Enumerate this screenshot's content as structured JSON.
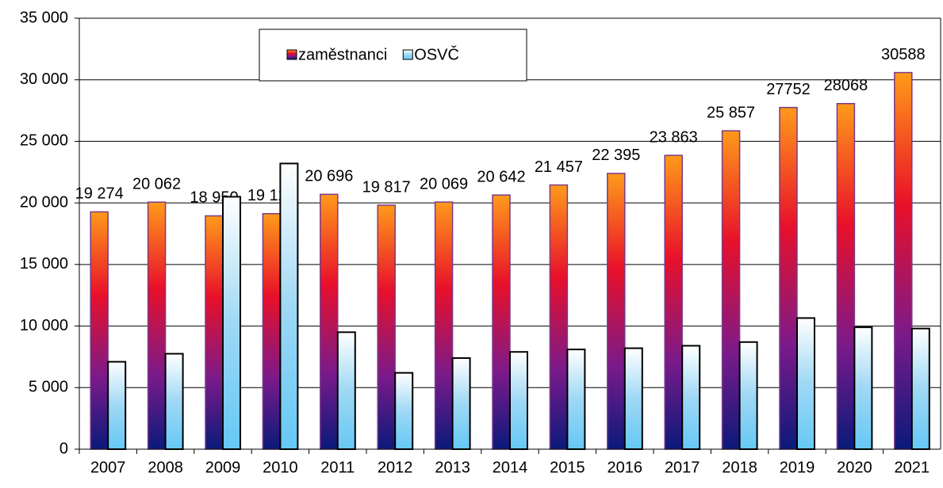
{
  "chart_data": {
    "type": "bar",
    "categories": [
      "2007",
      "2008",
      "2009",
      "2010",
      "2011",
      "2012",
      "2013",
      "2014",
      "2015",
      "2016",
      "2017",
      "2018",
      "2019",
      "2020",
      "2021"
    ],
    "series": [
      {
        "name": "zaměstnanci",
        "color": "#e8102a",
        "values": [
          19274,
          20062,
          18950,
          19128,
          20696,
          19817,
          20069,
          20642,
          21457,
          22395,
          23863,
          25857,
          27752,
          28068,
          30588
        ],
        "value_labels": [
          "19 274",
          "20 062",
          "18 950",
          "19 128",
          "20 696",
          "19 817",
          "20 069",
          "20 642",
          "21 457",
          "22 395",
          "23 863",
          "25 857",
          "27752",
          "28068",
          "30588"
        ]
      },
      {
        "name": "OSVČ",
        "color": "#9fd8f5",
        "values": [
          7100,
          7750,
          20500,
          23200,
          9500,
          6200,
          7400,
          7900,
          8100,
          8200,
          8400,
          8700,
          10650,
          9900,
          9800
        ]
      }
    ],
    "ylim": [
      0,
      35000
    ],
    "yticks": [
      0,
      {
        "value": 5000,
        "label": "5 000"
      },
      {
        "value": 10000,
        "label": "10 000"
      },
      {
        "value": 15000,
        "label": "15 000"
      },
      {
        "value": 20000,
        "label": "20 000"
      },
      {
        "value": 25000,
        "label": "25 000"
      },
      {
        "value": 30000,
        "label": "30 000"
      },
      {
        "value": 35000,
        "label": "35 000"
      }
    ],
    "grid": true,
    "legend": "top"
  }
}
